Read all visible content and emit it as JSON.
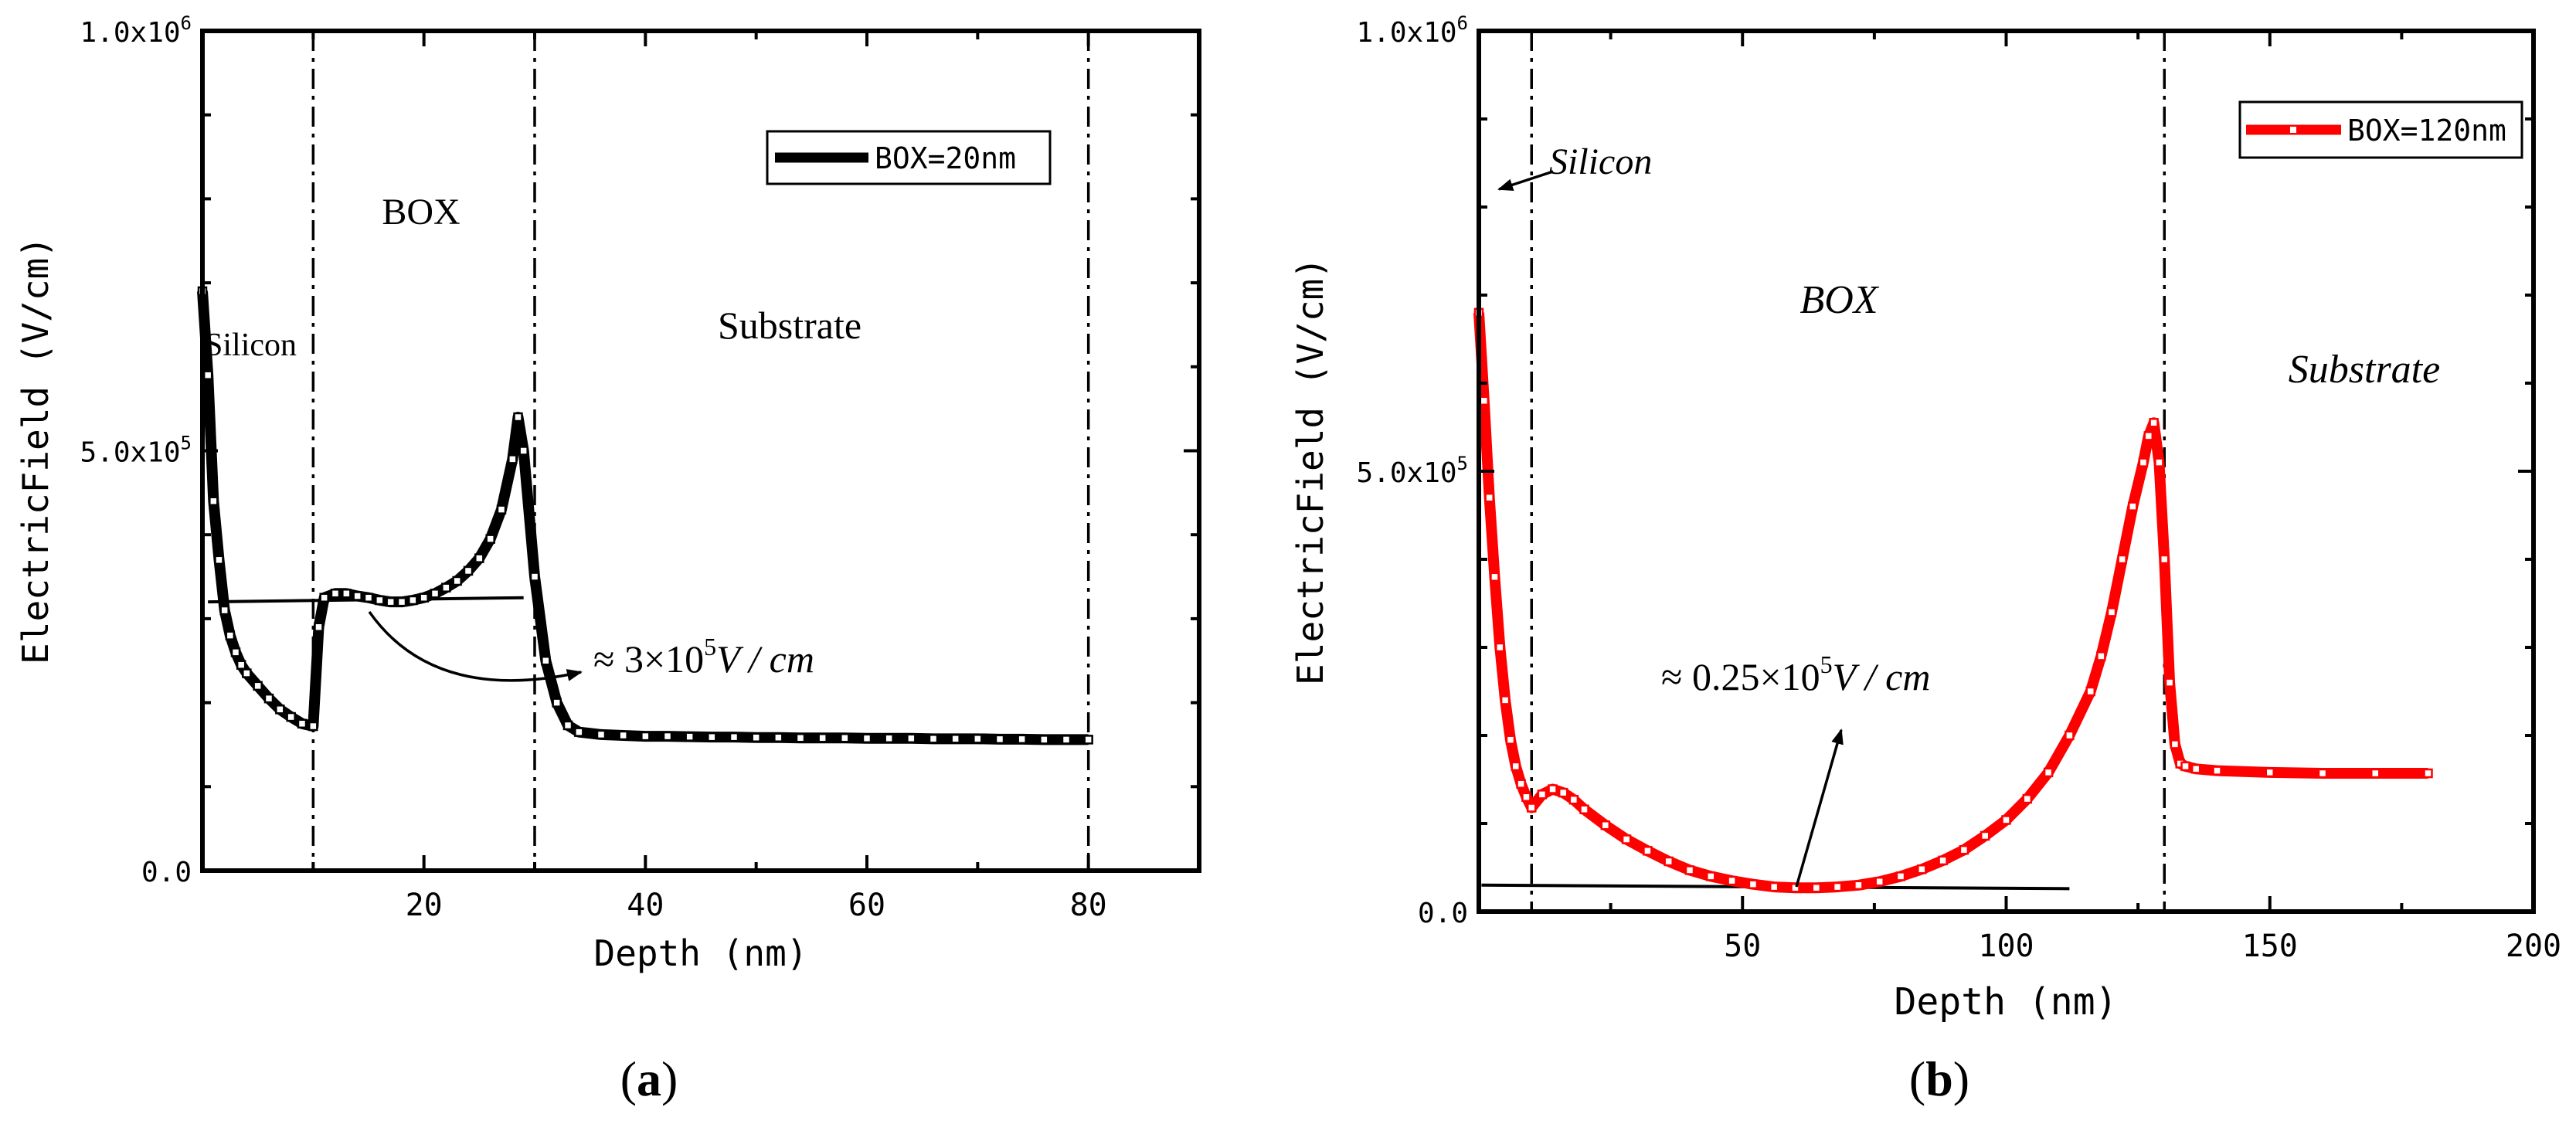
{
  "chart_data": [
    {
      "id": "a",
      "type": "line",
      "panel_label": "a",
      "xlabel": "Depth (nm)",
      "ylabel": "ElectricField (V/cm)",
      "xlim": [
        0,
        90
      ],
      "ylim": [
        0,
        1000000
      ],
      "x_ticks": [
        20,
        40,
        60,
        80
      ],
      "x_tick_labels": [
        "20",
        "40",
        "60",
        "80"
      ],
      "y_ticks": [
        0,
        500000,
        1000000
      ],
      "y_tick_labels": [
        {
          "mantissa": "0.0",
          "exp": ""
        },
        {
          "mantissa": "5.0x10",
          "exp": "5"
        },
        {
          "mantissa": "1.0x10",
          "exp": "6"
        }
      ],
      "series": [
        {
          "name": "BOX=20nm",
          "color": "#000000",
          "x": [
            0,
            0.5,
            1,
            1.5,
            2,
            2.5,
            3,
            3.5,
            4,
            5,
            6,
            7,
            8,
            9,
            10,
            10.5,
            11,
            12,
            13,
            14,
            15,
            16,
            17,
            18,
            19,
            20,
            21,
            22,
            23,
            24,
            25,
            26,
            27,
            28,
            28.5,
            29,
            30,
            31,
            32,
            33,
            34,
            36,
            38,
            40,
            42,
            44,
            46,
            48,
            50,
            52,
            54,
            56,
            58,
            60,
            62,
            64,
            66,
            68,
            70,
            72,
            74,
            76,
            78,
            80
          ],
          "y": [
            690000,
            590000,
            440000,
            370000,
            310000,
            280000,
            260000,
            245000,
            235000,
            220000,
            205000,
            192000,
            183000,
            175000,
            172000,
            290000,
            325000,
            330000,
            330000,
            327000,
            325000,
            322000,
            320000,
            320000,
            322000,
            325000,
            330000,
            337000,
            345000,
            357000,
            372000,
            395000,
            430000,
            490000,
            540000,
            500000,
            350000,
            250000,
            200000,
            173000,
            165000,
            162000,
            161000,
            160000,
            160000,
            159500,
            159000,
            159000,
            158500,
            158500,
            158000,
            158000,
            158000,
            157500,
            157500,
            157500,
            157000,
            157000,
            157000,
            156500,
            156500,
            156000,
            156000,
            156000
          ]
        }
      ],
      "region_lines": [
        10,
        30,
        80
      ],
      "region_labels": [
        "Silicon",
        "BOX",
        "Substrate"
      ],
      "annotation": {
        "prefix": "≈ 3×10",
        "exp": "5",
        "unit": "V / cm"
      },
      "reference_line": {
        "x": [
          0.5,
          29
        ],
        "y": [
          320000,
          325000
        ]
      },
      "legend": "top-right"
    },
    {
      "id": "b",
      "type": "line",
      "panel_label": "b",
      "xlabel": "Depth (nm)",
      "ylabel": "ElectricField (V/cm)",
      "xlim": [
        0,
        200
      ],
      "ylim": [
        0,
        1000000
      ],
      "x_ticks": [
        50,
        100,
        150,
        200
      ],
      "x_tick_labels": [
        "50",
        "100",
        "150",
        "200"
      ],
      "y_ticks": [
        0,
        500000,
        1000000
      ],
      "y_tick_labels": [
        {
          "mantissa": "0.0",
          "exp": ""
        },
        {
          "mantissa": "5.0x10",
          "exp": "5"
        },
        {
          "mantissa": "1.0x10",
          "exp": "6"
        }
      ],
      "series": [
        {
          "name": "BOX=120nm",
          "color": "#ff0000",
          "x": [
            0,
            1,
            2,
            3,
            4,
            5,
            6,
            7,
            8,
            9,
            10,
            12,
            14,
            16,
            18,
            20,
            24,
            28,
            32,
            36,
            40,
            44,
            48,
            52,
            56,
            60,
            64,
            68,
            72,
            76,
            80,
            84,
            88,
            92,
            96,
            100,
            104,
            108,
            112,
            116,
            118,
            120,
            122,
            124,
            126,
            127,
            128,
            129,
            130,
            131,
            132,
            133,
            134,
            136,
            140,
            150,
            160,
            170,
            180
          ],
          "y": [
            680000,
            580000,
            470000,
            380000,
            300000,
            240000,
            195000,
            165000,
            145000,
            130000,
            118000,
            133000,
            139000,
            135000,
            127000,
            116000,
            98000,
            82000,
            69000,
            57000,
            47000,
            40000,
            35000,
            31000,
            28000,
            27000,
            27000,
            28000,
            30000,
            34000,
            40000,
            48000,
            58000,
            70000,
            86000,
            104000,
            128000,
            158000,
            200000,
            250000,
            290000,
            340000,
            400000,
            460000,
            510000,
            540000,
            555000,
            510000,
            400000,
            260000,
            190000,
            168000,
            165000,
            162000,
            160000,
            158000,
            157000,
            157000,
            157000
          ]
        }
      ],
      "region_lines": [
        10,
        130
      ],
      "region_labels": [
        "Silicon",
        "BOX",
        "Substrate"
      ],
      "annotation": {
        "prefix": "≈ 0.25×10",
        "exp": "5",
        "unit": "V / cm"
      },
      "reference_line": {
        "x": [
          0.5,
          112
        ],
        "y": [
          30000,
          26000
        ]
      },
      "legend": "top-right"
    }
  ]
}
